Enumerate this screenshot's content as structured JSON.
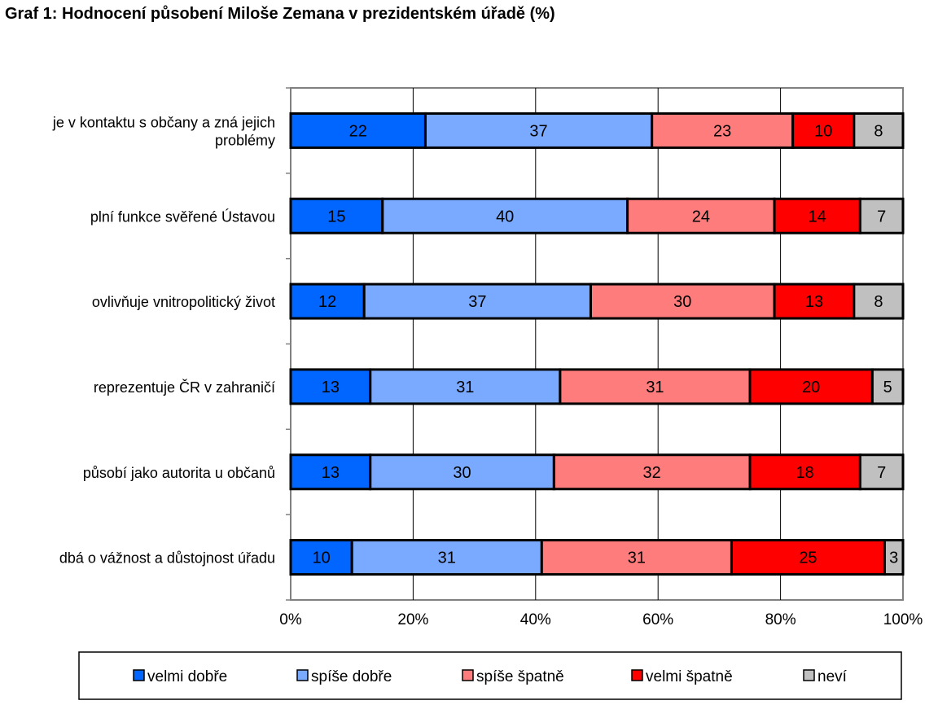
{
  "chart_data": {
    "type": "bar",
    "orientation": "horizontal",
    "stacked": true,
    "title": "Graf 1: Hodnocení působení Miloše Zemana v prezidentském úřadě (%)",
    "categories": [
      [
        "je v kontaktu s občany a zná jejich",
        "problémy"
      ],
      [
        "plní funkce svěřené Ústavou"
      ],
      [
        "ovlivňuje vnitropolitický život"
      ],
      [
        "reprezentuje ČR v zahraničí"
      ],
      [
        "působí jako autorita u občanů"
      ],
      [
        "dbá o vážnost a důstojnost úřadu"
      ]
    ],
    "series": [
      {
        "name": "velmi dobře",
        "color": "#0066ff",
        "values": [
          22,
          15,
          12,
          13,
          13,
          10
        ]
      },
      {
        "name": "spíše dobře",
        "color": "#7aaaff",
        "values": [
          37,
          40,
          37,
          31,
          30,
          31
        ]
      },
      {
        "name": "spíše špatně",
        "color": "#ff7c7c",
        "values": [
          23,
          24,
          30,
          31,
          32,
          31
        ]
      },
      {
        "name": "velmi špatně",
        "color": "#ff0000",
        "values": [
          10,
          14,
          13,
          20,
          18,
          25
        ]
      },
      {
        "name": "neví",
        "color": "#c0c0c0",
        "values": [
          8,
          7,
          8,
          5,
          7,
          3
        ]
      }
    ],
    "x_ticks": [
      "0%",
      "20%",
      "40%",
      "60%",
      "80%",
      "100%"
    ],
    "xlim": [
      0,
      100
    ],
    "grid": true,
    "legend": "bottom"
  }
}
